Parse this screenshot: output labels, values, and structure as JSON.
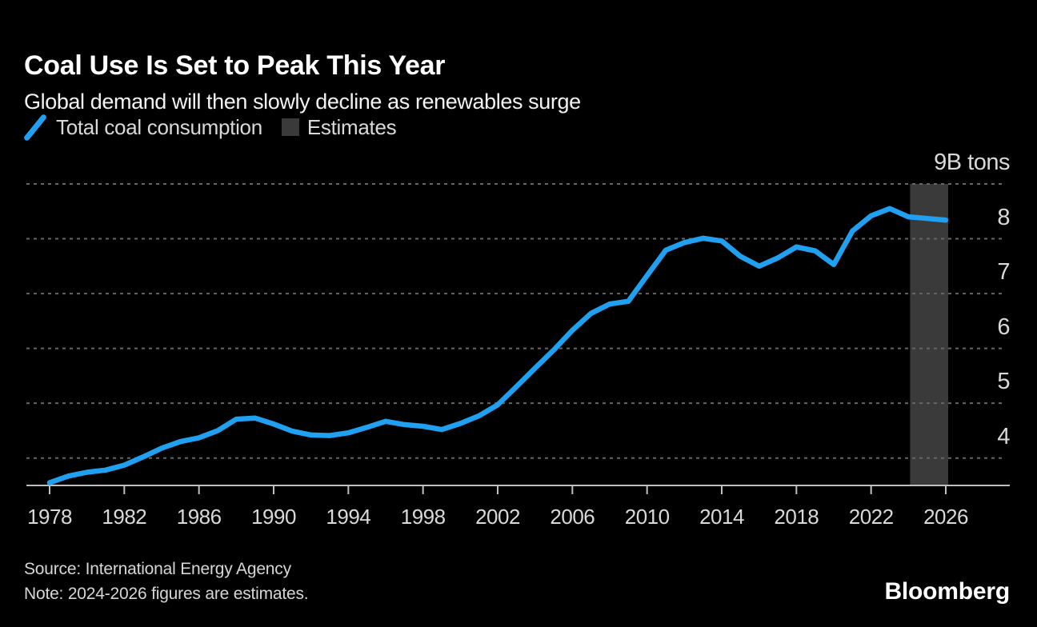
{
  "header": {
    "title": "Coal Use Is Set to Peak This Year",
    "subtitle": "Global demand will then slowly decline as renewables surge"
  },
  "legend": {
    "series_label": "Total coal consumption",
    "estimates_label": "Estimates"
  },
  "footer": {
    "source": "Source: International Energy Agency",
    "note": "Note: 2024-2026 figures are estimates.",
    "brand": "Bloomberg"
  },
  "colors": {
    "background": "#000000",
    "title_text": "#ffffff",
    "label_text": "#d9d9d9",
    "line": "#1fa0f0",
    "estimates_band": "#3a3a3a",
    "grid": "#666666",
    "axis": "#bfbfbf"
  },
  "chart_data": {
    "type": "line",
    "title": "Coal Use Is Set to Peak This Year",
    "subtitle": "Global demand will then slowly decline as renewables surge",
    "xlabel": "",
    "ylabel": "",
    "unit_top_label": "9B tons",
    "ylim": [
      3.5,
      9
    ],
    "xlim": [
      1978,
      2026
    ],
    "grid": "horizontal-dotted",
    "legend_position": "top-left",
    "y_ticks": [
      4,
      5,
      6,
      7,
      8,
      9
    ],
    "x_ticks": [
      1978,
      1982,
      1986,
      1990,
      1994,
      1998,
      2002,
      2006,
      2010,
      2014,
      2018,
      2022,
      2026
    ],
    "estimate_band_years": [
      2024,
      2026
    ],
    "series": [
      {
        "name": "Total coal consumption",
        "x": [
          1978,
          1979,
          1980,
          1981,
          1982,
          1983,
          1984,
          1985,
          1986,
          1987,
          1988,
          1989,
          1990,
          1991,
          1992,
          1993,
          1994,
          1995,
          1996,
          1997,
          1998,
          1999,
          2000,
          2001,
          2002,
          2003,
          2004,
          2005,
          2006,
          2007,
          2008,
          2009,
          2010,
          2011,
          2012,
          2013,
          2014,
          2015,
          2016,
          2017,
          2018,
          2019,
          2020,
          2021,
          2022,
          2023,
          2024,
          2025,
          2026
        ],
        "values": [
          3.55,
          3.67,
          3.74,
          3.78,
          3.87,
          4.02,
          4.18,
          4.3,
          4.37,
          4.5,
          4.71,
          4.73,
          4.62,
          4.49,
          4.42,
          4.41,
          4.46,
          4.56,
          4.67,
          4.61,
          4.58,
          4.52,
          4.63,
          4.77,
          4.97,
          5.3,
          5.64,
          5.97,
          6.33,
          6.64,
          6.81,
          6.86,
          7.33,
          7.79,
          7.93,
          8.01,
          7.96,
          7.68,
          7.5,
          7.65,
          7.85,
          7.78,
          7.53,
          8.14,
          8.42,
          8.55,
          8.4,
          8.37,
          8.34
        ]
      }
    ]
  }
}
